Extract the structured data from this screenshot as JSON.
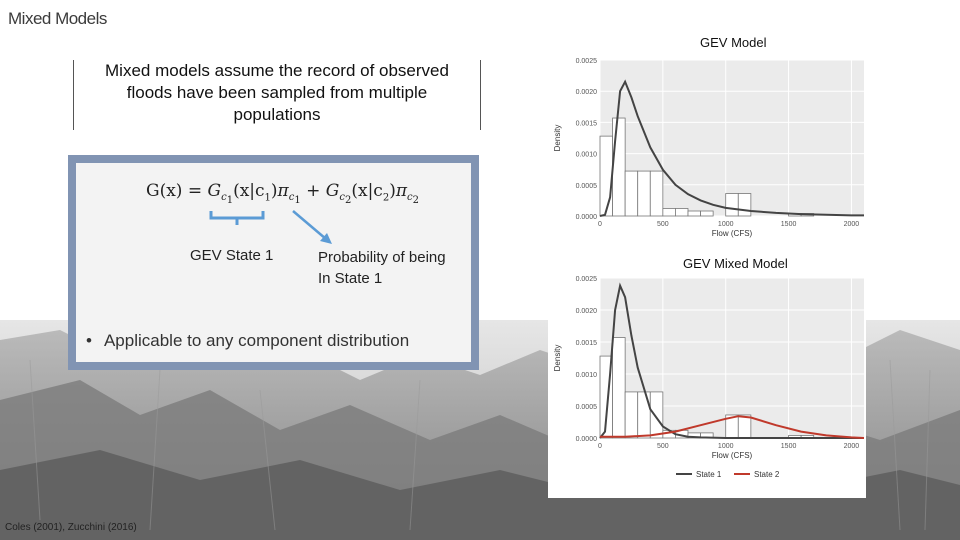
{
  "slide": {
    "title": "Mixed Models",
    "intro_lines": [
      "Mixed models assume the record of observed",
      "floods have been sampled from multiple",
      "populations"
    ],
    "formula": {
      "lhs": "G(x) = ",
      "term1": "(x|c",
      "term2": "(x|c"
    },
    "label_state1": "GEV State 1",
    "label_prob_line1": "Probability of being",
    "label_prob_line2": "In State 1",
    "bullet": "Applicable to any component distribution",
    "citation": "Coles (2001), Zucchini (2016)"
  },
  "chart_data": [
    {
      "type": "histogram-density",
      "title": "GEV Model",
      "xlabel": "Flow (CFS)",
      "ylabel": "Density",
      "xlim": [
        0,
        2100
      ],
      "ylim": [
        0,
        0.0025
      ],
      "xticks": [
        0,
        500,
        1000,
        1500,
        2000
      ],
      "yticks": [
        "0.0000",
        "0.0005",
        "0.0010",
        "0.0015",
        "0.0020",
        "0.0025"
      ],
      "bins": [
        {
          "x0": 0,
          "x1": 100,
          "density": 0.00128
        },
        {
          "x0": 100,
          "x1": 200,
          "density": 0.00157
        },
        {
          "x0": 200,
          "x1": 300,
          "density": 0.00072
        },
        {
          "x0": 300,
          "x1": 400,
          "density": 0.00072
        },
        {
          "x0": 400,
          "x1": 500,
          "density": 0.00072
        },
        {
          "x0": 500,
          "x1": 600,
          "density": 0.00012
        },
        {
          "x0": 600,
          "x1": 700,
          "density": 0.00012
        },
        {
          "x0": 700,
          "x1": 800,
          "density": 8e-05
        },
        {
          "x0": 800,
          "x1": 900,
          "density": 8e-05
        },
        {
          "x0": 900,
          "x1": 1000,
          "density": 0.0
        },
        {
          "x0": 1000,
          "x1": 1100,
          "density": 0.00036
        },
        {
          "x0": 1100,
          "x1": 1200,
          "density": 0.00036
        },
        {
          "x0": 1200,
          "x1": 1300,
          "density": 0.0
        },
        {
          "x0": 1300,
          "x1": 1400,
          "density": 0.0
        },
        {
          "x0": 1400,
          "x1": 1500,
          "density": 0.0
        },
        {
          "x0": 1500,
          "x1": 1600,
          "density": 4e-05
        },
        {
          "x0": 1600,
          "x1": 1700,
          "density": 4e-05
        }
      ],
      "series": [
        {
          "color": "#444444",
          "points": [
            [
              0,
              0
            ],
            [
              40,
              2e-05
            ],
            [
              80,
              0.0003
            ],
            [
              120,
              0.0012
            ],
            [
              160,
              0.002
            ],
            [
              200,
              0.00215
            ],
            [
              250,
              0.0019
            ],
            [
              300,
              0.0016
            ],
            [
              400,
              0.0011
            ],
            [
              500,
              0.00074
            ],
            [
              600,
              0.0005
            ],
            [
              700,
              0.00035
            ],
            [
              800,
              0.00025
            ],
            [
              900,
              0.00018
            ],
            [
              1000,
              0.00013
            ],
            [
              1200,
              8e-05
            ],
            [
              1400,
              5e-05
            ],
            [
              1600,
              3e-05
            ],
            [
              1800,
              2e-05
            ],
            [
              2000,
              1e-05
            ],
            [
              2100,
              1e-05
            ]
          ]
        }
      ]
    },
    {
      "type": "histogram-density",
      "title": "GEV Mixed Model",
      "xlabel": "Flow (CFS)",
      "ylabel": "Density",
      "xlim": [
        0,
        2100
      ],
      "ylim": [
        0,
        0.0025
      ],
      "xticks": [
        0,
        500,
        1000,
        1500,
        2000
      ],
      "yticks": [
        "0.0000",
        "0.0005",
        "0.0010",
        "0.0015",
        "0.0020",
        "0.0025"
      ],
      "bins": [
        {
          "x0": 0,
          "x1": 100,
          "density": 0.00128
        },
        {
          "x0": 100,
          "x1": 200,
          "density": 0.00157
        },
        {
          "x0": 200,
          "x1": 300,
          "density": 0.00072
        },
        {
          "x0": 300,
          "x1": 400,
          "density": 0.00072
        },
        {
          "x0": 400,
          "x1": 500,
          "density": 0.00072
        },
        {
          "x0": 500,
          "x1": 600,
          "density": 0.00012
        },
        {
          "x0": 600,
          "x1": 700,
          "density": 0.00012
        },
        {
          "x0": 700,
          "x1": 800,
          "density": 8e-05
        },
        {
          "x0": 800,
          "x1": 900,
          "density": 8e-05
        },
        {
          "x0": 900,
          "x1": 1000,
          "density": 0.0
        },
        {
          "x0": 1000,
          "x1": 1100,
          "density": 0.00036
        },
        {
          "x0": 1100,
          "x1": 1200,
          "density": 0.00036
        },
        {
          "x0": 1200,
          "x1": 1300,
          "density": 0.0
        },
        {
          "x0": 1300,
          "x1": 1400,
          "density": 0.0
        },
        {
          "x0": 1400,
          "x1": 1500,
          "density": 0.0
        },
        {
          "x0": 1500,
          "x1": 1600,
          "density": 4e-05
        },
        {
          "x0": 1600,
          "x1": 1700,
          "density": 4e-05
        }
      ],
      "legend": [
        "State 1",
        "State 2"
      ],
      "series": [
        {
          "name": "State 1",
          "color": "#444444",
          "points": [
            [
              0,
              0
            ],
            [
              40,
              0.0001
            ],
            [
              80,
              0.001
            ],
            [
              120,
              0.002
            ],
            [
              160,
              0.00238
            ],
            [
              200,
              0.0022
            ],
            [
              250,
              0.0016
            ],
            [
              300,
              0.0011
            ],
            [
              400,
              0.00045
            ],
            [
              500,
              0.00018
            ],
            [
              600,
              6e-05
            ],
            [
              700,
              2e-05
            ],
            [
              800,
              1e-05
            ],
            [
              1000,
              0
            ],
            [
              2100,
              0
            ]
          ]
        },
        {
          "name": "State 2",
          "color": "#c0392b",
          "points": [
            [
              0,
              2e-05
            ],
            [
              200,
              2e-05
            ],
            [
              400,
              4e-05
            ],
            [
              600,
              0.0001
            ],
            [
              800,
              0.0002
            ],
            [
              1000,
              0.0003
            ],
            [
              1100,
              0.00034
            ],
            [
              1200,
              0.00032
            ],
            [
              1400,
              0.0002
            ],
            [
              1600,
              0.0001
            ],
            [
              1800,
              4e-05
            ],
            [
              2000,
              1e-05
            ],
            [
              2100,
              0
            ]
          ]
        }
      ]
    }
  ]
}
